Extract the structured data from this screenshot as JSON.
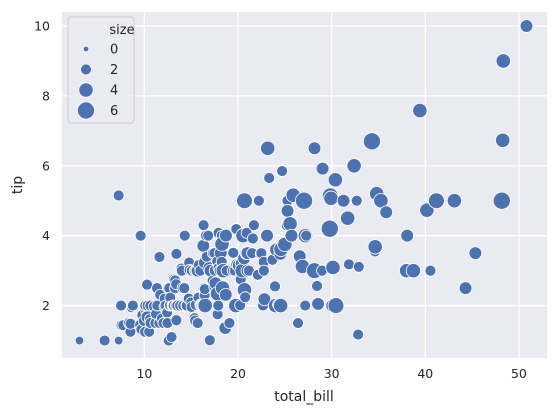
{
  "chart_data": {
    "type": "scatter",
    "title": "",
    "xlabel": "total_bill",
    "ylabel": "tip",
    "xlim": [
      1.2,
      53.0
    ],
    "ylim": [
      0.5,
      10.4
    ],
    "xticks": [
      10,
      20,
      30,
      40,
      50
    ],
    "yticks": [
      2,
      4,
      6,
      8,
      10
    ],
    "grid": true,
    "point_color": "#4c72b0",
    "background_color": "#eaeaf2",
    "legend": {
      "title": "size",
      "placement": "upper-left",
      "entries": [
        {
          "label": "0",
          "size": 0
        },
        {
          "label": "2",
          "size": 2
        },
        {
          "label": "4",
          "size": 4
        },
        {
          "label": "6",
          "size": 6
        }
      ]
    },
    "points": [
      [
        3.07,
        1.0,
        1
      ],
      [
        5.75,
        1.0,
        2
      ],
      [
        7.25,
        1.0,
        1
      ],
      [
        7.25,
        5.15,
        2
      ],
      [
        7.51,
        2.0,
        2
      ],
      [
        7.56,
        1.44,
        2
      ],
      [
        7.74,
        1.44,
        2
      ],
      [
        8.35,
        1.5,
        2
      ],
      [
        8.51,
        1.25,
        2
      ],
      [
        8.52,
        1.48,
        2
      ],
      [
        8.58,
        1.92,
        1
      ],
      [
        8.77,
        2.0,
        2
      ],
      [
        9.55,
        1.45,
        2
      ],
      [
        9.6,
        4.0,
        2
      ],
      [
        9.68,
        1.32,
        2
      ],
      [
        9.78,
        1.73,
        2
      ],
      [
        9.94,
        1.56,
        2
      ],
      [
        10.07,
        1.25,
        2
      ],
      [
        10.07,
        1.83,
        1
      ],
      [
        10.09,
        2.0,
        2
      ],
      [
        10.27,
        1.71,
        2
      ],
      [
        10.29,
        2.6,
        2
      ],
      [
        10.33,
        1.67,
        3
      ],
      [
        10.34,
        2.0,
        2
      ],
      [
        10.51,
        1.25,
        2
      ],
      [
        10.59,
        1.61,
        2
      ],
      [
        10.63,
        2.0,
        2
      ],
      [
        10.65,
        1.5,
        2
      ],
      [
        11.02,
        1.98,
        2
      ],
      [
        11.17,
        1.5,
        2
      ],
      [
        11.24,
        1.76,
        2
      ],
      [
        11.35,
        2.5,
        2
      ],
      [
        11.38,
        2.0,
        2
      ],
      [
        11.59,
        1.5,
        2
      ],
      [
        11.61,
        3.39,
        2
      ],
      [
        11.69,
        2.31,
        2
      ],
      [
        11.87,
        1.63,
        2
      ],
      [
        12.02,
        1.97,
        1
      ],
      [
        12.03,
        1.5,
        2
      ],
      [
        12.16,
        2.2,
        2
      ],
      [
        12.26,
        2.0,
        2
      ],
      [
        12.43,
        1.8,
        2
      ],
      [
        12.46,
        1.5,
        2
      ],
      [
        12.48,
        2.52,
        2
      ],
      [
        12.54,
        2.5,
        2
      ],
      [
        12.6,
        1.0,
        2
      ],
      [
        12.66,
        2.5,
        2
      ],
      [
        12.69,
        2.0,
        2
      ],
      [
        12.74,
        2.01,
        2
      ],
      [
        12.76,
        2.23,
        2
      ],
      [
        12.9,
        1.1,
        2
      ],
      [
        13.0,
        2.0,
        2
      ],
      [
        13.03,
        2.0,
        2
      ],
      [
        13.13,
        2.0,
        2
      ],
      [
        13.16,
        2.75,
        2
      ],
      [
        13.27,
        2.5,
        2
      ],
      [
        13.28,
        2.72,
        2
      ],
      [
        13.37,
        2.0,
        2
      ],
      [
        13.39,
        2.61,
        2
      ],
      [
        13.42,
        1.58,
        2
      ],
      [
        13.42,
        3.48,
        2
      ],
      [
        13.51,
        2.0,
        2
      ],
      [
        13.81,
        2.0,
        2
      ],
      [
        13.94,
        3.06,
        2
      ],
      [
        14.0,
        3.0,
        2
      ],
      [
        14.07,
        2.5,
        2
      ],
      [
        14.15,
        2.0,
        2
      ],
      [
        14.26,
        2.5,
        2
      ],
      [
        14.31,
        4.0,
        2
      ],
      [
        14.48,
        2.0,
        2
      ],
      [
        14.52,
        2.0,
        2
      ],
      [
        14.73,
        2.2,
        2
      ],
      [
        14.78,
        3.23,
        2
      ],
      [
        14.83,
        3.02,
        2
      ],
      [
        15.01,
        2.09,
        2
      ],
      [
        15.04,
        1.96,
        2
      ],
      [
        15.06,
        3.0,
        2
      ],
      [
        15.36,
        1.64,
        2
      ],
      [
        15.38,
        3.0,
        2
      ],
      [
        15.42,
        1.57,
        2
      ],
      [
        15.48,
        2.02,
        2
      ],
      [
        15.53,
        3.0,
        2
      ],
      [
        15.69,
        1.5,
        2
      ],
      [
        15.69,
        3.0,
        3
      ],
      [
        15.77,
        2.23,
        2
      ],
      [
        15.81,
        3.16,
        2
      ],
      [
        15.98,
        2.03,
        2
      ],
      [
        15.98,
        3.0,
        2
      ],
      [
        16.0,
        2.0,
        2
      ],
      [
        16.21,
        2.0,
        3
      ],
      [
        16.27,
        2.5,
        2
      ],
      [
        16.29,
        3.71,
        3
      ],
      [
        16.31,
        2.0,
        3
      ],
      [
        16.32,
        4.3,
        2
      ],
      [
        16.4,
        2.5,
        2
      ],
      [
        16.43,
        2.3,
        2
      ],
      [
        16.45,
        2.47,
        2
      ],
      [
        16.47,
        3.23,
        3
      ],
      [
        16.49,
        2.0,
        4
      ],
      [
        16.58,
        4.0,
        2
      ],
      [
        16.66,
        3.4,
        2
      ],
      [
        16.82,
        4.0,
        2
      ],
      [
        16.93,
        3.07,
        3
      ],
      [
        16.97,
        1.0,
        1
      ],
      [
        16.99,
        1.01,
        2
      ],
      [
        17.07,
        3.0,
        3
      ],
      [
        17.29,
        2.71,
        2
      ],
      [
        17.31,
        3.5,
        2
      ],
      [
        17.46,
        2.54,
        2
      ],
      [
        17.47,
        3.5,
        2
      ],
      [
        17.51,
        3.0,
        2
      ],
      [
        17.59,
        2.64,
        3
      ],
      [
        17.78,
        3.27,
        2
      ],
      [
        17.81,
        2.34,
        4
      ],
      [
        17.82,
        1.75,
        2
      ],
      [
        17.89,
        2.0,
        2
      ],
      [
        17.92,
        3.08,
        2
      ],
      [
        17.92,
        4.08,
        2
      ],
      [
        18.04,
        3.0,
        2
      ],
      [
        18.15,
        3.5,
        3
      ],
      [
        18.24,
        3.76,
        2
      ],
      [
        18.26,
        3.25,
        2
      ],
      [
        18.28,
        4.0,
        2
      ],
      [
        18.29,
        3.76,
        4
      ],
      [
        18.35,
        2.5,
        4
      ],
      [
        18.43,
        3.0,
        4
      ],
      [
        18.64,
        1.36,
        3
      ],
      [
        18.69,
        2.31,
        3
      ],
      [
        18.71,
        4.0,
        3
      ],
      [
        18.78,
        3.0,
        2
      ],
      [
        19.08,
        1.5,
        2
      ],
      [
        19.44,
        3.0,
        2
      ],
      [
        19.49,
        3.51,
        2
      ],
      [
        19.65,
        3.0,
        2
      ],
      [
        19.77,
        2.0,
        4
      ],
      [
        19.81,
        4.19,
        2
      ],
      [
        19.82,
        3.18,
        2
      ],
      [
        20.08,
        3.15,
        3
      ],
      [
        20.23,
        2.01,
        2
      ],
      [
        20.27,
        2.83,
        2
      ],
      [
        20.29,
        3.21,
        2
      ],
      [
        20.29,
        2.75,
        2
      ],
      [
        20.45,
        3.0,
        4
      ],
      [
        20.49,
        4.06,
        2
      ],
      [
        20.53,
        4.0,
        4
      ],
      [
        20.65,
        3.35,
        3
      ],
      [
        20.69,
        2.45,
        4
      ],
      [
        20.69,
        5.0,
        5
      ],
      [
        20.76,
        2.24,
        2
      ],
      [
        20.9,
        3.5,
        3
      ],
      [
        20.92,
        4.08,
        2
      ],
      [
        21.01,
        3.0,
        3
      ],
      [
        21.01,
        3.5,
        3
      ],
      [
        21.16,
        3.0,
        2
      ],
      [
        21.5,
        3.5,
        2
      ],
      [
        21.58,
        3.92,
        2
      ],
      [
        21.7,
        4.3,
        2
      ],
      [
        22.12,
        2.88,
        2
      ],
      [
        22.23,
        5.0,
        2
      ],
      [
        22.42,
        3.48,
        2
      ],
      [
        22.49,
        3.5,
        2
      ],
      [
        22.67,
        2.0,
        2
      ],
      [
        22.75,
        3.25,
        2
      ],
      [
        22.76,
        3.0,
        2
      ],
      [
        22.82,
        2.18,
        3
      ],
      [
        23.1,
        4.0,
        3
      ],
      [
        23.17,
        6.5,
        4
      ],
      [
        23.33,
        5.65,
        2
      ],
      [
        23.68,
        3.31,
        2
      ],
      [
        23.95,
        2.55,
        2
      ],
      [
        24.01,
        2.0,
        4
      ],
      [
        24.06,
        3.6,
        3
      ],
      [
        24.27,
        2.03,
        2
      ],
      [
        24.52,
        3.48,
        3
      ],
      [
        24.55,
        2.0,
        4
      ],
      [
        24.59,
        3.61,
        4
      ],
      [
        24.71,
        5.85,
        2
      ],
      [
        25.0,
        3.75,
        4
      ],
      [
        25.21,
        4.29,
        2
      ],
      [
        25.28,
        5.0,
        2
      ],
      [
        25.29,
        4.71,
        3
      ],
      [
        25.56,
        4.34,
        4
      ],
      [
        25.71,
        4.0,
        3
      ],
      [
        25.89,
        5.16,
        4
      ],
      [
        26.41,
        1.5,
        2
      ],
      [
        26.59,
        3.41,
        3
      ],
      [
        26.86,
        3.14,
        2
      ],
      [
        26.88,
        3.12,
        4
      ],
      [
        27.05,
        5.0,
        6
      ],
      [
        27.18,
        2.0,
        2
      ],
      [
        27.2,
        4.0,
        4
      ],
      [
        27.28,
        4.0,
        2
      ],
      [
        28.15,
        3.0,
        5
      ],
      [
        28.17,
        6.5,
        3
      ],
      [
        28.44,
        2.56,
        2
      ],
      [
        28.55,
        2.05,
        3
      ],
      [
        28.97,
        3.0,
        2
      ],
      [
        29.03,
        5.92,
        3
      ],
      [
        29.8,
        4.2,
        6
      ],
      [
        29.85,
        5.14,
        5
      ],
      [
        29.93,
        5.07,
        4
      ],
      [
        30.06,
        2.0,
        3
      ],
      [
        30.14,
        3.09,
        4
      ],
      [
        30.4,
        5.6,
        4
      ],
      [
        30.46,
        2.0,
        5
      ],
      [
        31.27,
        5.0,
        3
      ],
      [
        31.71,
        4.5,
        4
      ],
      [
        31.85,
        3.18,
        2
      ],
      [
        32.4,
        6.0,
        4
      ],
      [
        32.68,
        5.0,
        2
      ],
      [
        32.83,
        1.17,
        2
      ],
      [
        32.9,
        3.11,
        2
      ],
      [
        34.3,
        6.7,
        6
      ],
      [
        34.63,
        3.55,
        2
      ],
      [
        34.65,
        3.68,
        4
      ],
      [
        34.81,
        5.2,
        4
      ],
      [
        35.26,
        5.0,
        4
      ],
      [
        35.83,
        4.67,
        3
      ],
      [
        38.01,
        3.0,
        4
      ],
      [
        38.07,
        4.0,
        3
      ],
      [
        38.73,
        3.0,
        4
      ],
      [
        39.42,
        7.58,
        4
      ],
      [
        40.17,
        4.73,
        4
      ],
      [
        40.55,
        3.0,
        2
      ],
      [
        41.19,
        5.0,
        5
      ],
      [
        43.11,
        5.0,
        4
      ],
      [
        44.3,
        2.5,
        3
      ],
      [
        45.35,
        3.5,
        3
      ],
      [
        48.17,
        5.0,
        6
      ],
      [
        48.27,
        6.73,
        4
      ],
      [
        48.33,
        9.0,
        4
      ],
      [
        50.81,
        10.0,
        3
      ]
    ]
  }
}
